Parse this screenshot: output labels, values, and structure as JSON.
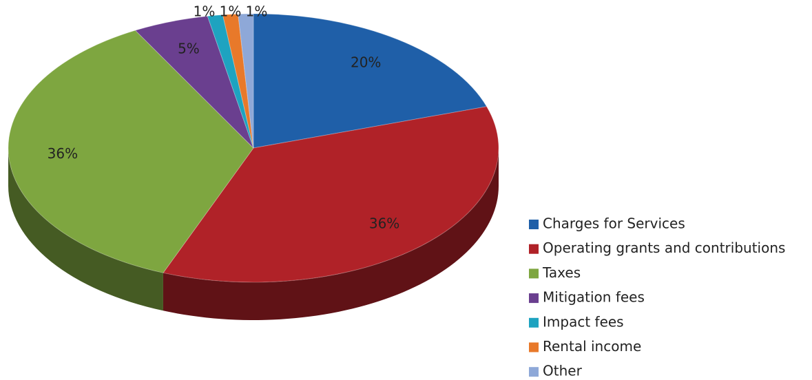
{
  "chart_data": {
    "type": "pie",
    "categories": [
      "Charges for Services",
      "Operating grants and contributions",
      "Taxes",
      "Mitigation fees",
      "Impact fees",
      "Rental income",
      "Other"
    ],
    "values": [
      20,
      36,
      36,
      5,
      1,
      1,
      1
    ],
    "value_labels": [
      "20%",
      "36%",
      "36%",
      "5%",
      "1%",
      "1%",
      "1%"
    ],
    "colors": [
      "#1f5fa8",
      "#b02228",
      "#7ea640",
      "#6a3f8f",
      "#1ea3c0",
      "#e8792a",
      "#8ea8d8"
    ],
    "legend": "right"
  }
}
